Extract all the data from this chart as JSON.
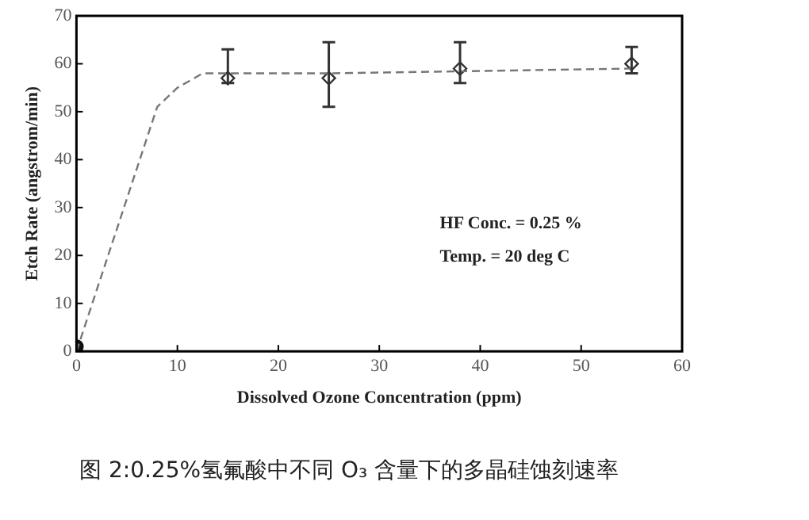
{
  "chart_data": {
    "type": "scatter",
    "xlabel": "Dissolved Ozone Concentration (ppm)",
    "ylabel": "Etch Rate (angstrom/min)",
    "xlim": [
      0,
      60
    ],
    "xticks": [
      0,
      10,
      20,
      30,
      40,
      50,
      60
    ],
    "ylim": [
      0,
      70
    ],
    "yticks": [
      0,
      10,
      20,
      30,
      40,
      50,
      60,
      70
    ],
    "grid": false,
    "legend": false,
    "series": [
      {
        "type": "line",
        "color": "#777777",
        "line_style": "dashed",
        "marker": "none",
        "x": [
          0,
          8,
          10,
          12.5,
          25,
          40,
          55
        ],
        "values": [
          0,
          51,
          55,
          58,
          58,
          58.5,
          59
        ]
      },
      {
        "type": "scatter",
        "color": "#111111",
        "marker": "circle",
        "x": [
          0
        ],
        "values": [
          1
        ]
      },
      {
        "type": "scatter",
        "color": "#333333",
        "marker": "diamond",
        "x": [
          15,
          25,
          38,
          55
        ],
        "values": [
          57,
          57,
          59,
          60
        ],
        "errors": [
          [
            56,
            63
          ],
          [
            51,
            64.5
          ],
          [
            56,
            64.5
          ],
          [
            58,
            63.5
          ]
        ]
      }
    ],
    "annotations": [
      "HF Conc. = 0.25 %",
      "Temp. = 20 deg C",
      "图 2:0.25%氢氟酸中不同 O₃ 含量下的多晶硅蚀刻速率"
    ]
  }
}
